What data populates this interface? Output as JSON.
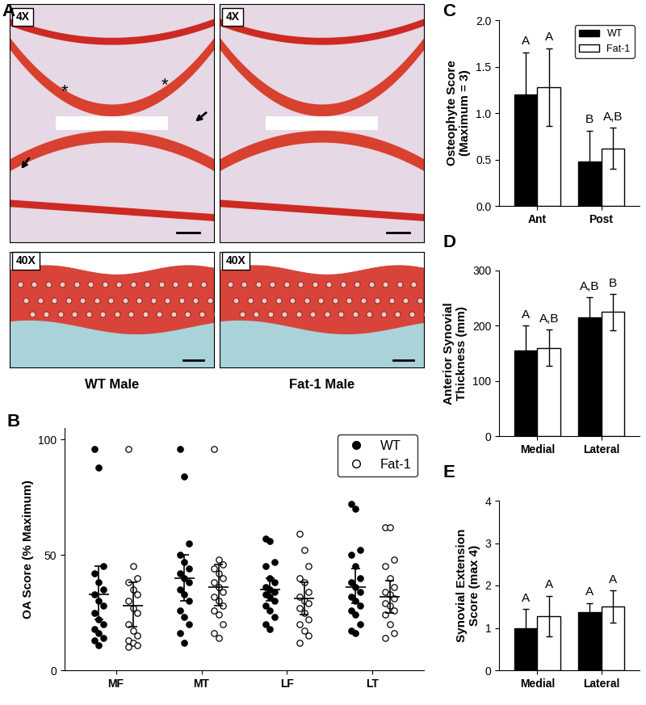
{
  "image_panel": {
    "panel_label": "A",
    "magnification_labels": [
      "4X",
      "4X",
      "40X",
      "40X"
    ],
    "captions": [
      "WT Male",
      "Fat-1 Male"
    ],
    "annotations": [
      "*",
      "*"
    ]
  },
  "chart_data": [
    {
      "type": "scatter",
      "panel_label": "B",
      "y_label": "OA Score (% Maximum)",
      "categories": [
        "MF",
        "MT",
        "LF",
        "LT"
      ],
      "ylim": [
        0,
        105
      ],
      "yticks": [
        0,
        50,
        100
      ],
      "legend": "upper right",
      "series": [
        {
          "name": "WT",
          "color": "#000000",
          "marker": "circle",
          "values": [
            [
              96,
              88,
              45,
              42,
              38,
              35,
              33,
              30,
              28,
              25,
              22,
              20,
              18,
              16,
              14,
              13,
              11
            ],
            [
              96,
              84,
              55,
              50,
              47,
              44,
              42,
              40,
              38,
              35,
              33,
              30,
              26,
              23,
              20,
              16,
              12
            ],
            [
              57,
              56,
              47,
              45,
              40,
              38,
              36,
              35,
              34,
              33,
              32,
              30,
              28,
              26,
              23,
              20,
              18
            ],
            [
              72,
              70,
              52,
              50,
              45,
              40,
              38,
              36,
              34,
              32,
              30,
              28,
              26,
              24,
              20,
              17,
              16
            ]
          ],
          "mean": [
            33,
            40,
            35,
            36
          ],
          "ci_low": [
            22,
            30,
            30,
            29
          ],
          "ci_high": [
            45,
            50,
            40,
            44
          ]
        },
        {
          "name": "Fat-1",
          "color": "#000000",
          "marker": "open_circle",
          "values": [
            [
              96,
              45,
              40,
              38,
              35,
              33,
              30,
              27,
              25,
              20,
              17,
              15,
              13,
              12,
              11,
              10
            ],
            [
              96,
              48,
              46,
              44,
              42,
              40,
              38,
              36,
              34,
              32,
              30,
              28,
              26,
              24,
              20,
              16,
              14
            ],
            [
              59,
              52,
              45,
              40,
              38,
              34,
              32,
              30,
              29,
              27,
              25,
              22,
              20,
              17,
              15,
              12
            ],
            [
              62,
              62,
              48,
              45,
              40,
              36,
              34,
              33,
              31,
              29,
              28,
              26,
              24,
              20,
              16,
              14
            ]
          ],
          "mean": [
            28,
            36,
            31,
            32
          ],
          "ci_low": [
            19,
            28,
            24,
            25
          ],
          "ci_high": [
            38,
            46,
            38,
            39
          ]
        }
      ]
    },
    {
      "type": "bar",
      "panel_label": "C",
      "y_label": "Osteophyte Score\n(Maximum = 3)",
      "categories": [
        "Ant",
        "Post"
      ],
      "ylim": [
        0,
        2.0
      ],
      "yticks": [
        {
          "value": 0,
          "label": "0.0"
        },
        {
          "value": 0.5,
          "label": "0.5"
        },
        {
          "value": 1,
          "label": "1.0"
        },
        {
          "value": 1.5,
          "label": "1.5"
        },
        {
          "value": 2,
          "label": "2.0"
        }
      ],
      "legend": "upper right",
      "series": [
        {
          "name": "WT",
          "color": "#000000",
          "values": [
            1.2,
            0.48
          ],
          "errors": [
            0.45,
            0.33
          ],
          "significance_labels": [
            "A",
            "B"
          ]
        },
        {
          "name": "Fat-1",
          "color": "#ffffff",
          "values": [
            1.28,
            0.62
          ],
          "errors": [
            0.42,
            0.22
          ],
          "significance_labels": [
            "A",
            "A,B"
          ]
        }
      ]
    },
    {
      "type": "bar",
      "panel_label": "D",
      "y_label": "Anterior Synovial\nThickness (mm)",
      "categories": [
        "Medial",
        "Lateral"
      ],
      "ylim": [
        0,
        300
      ],
      "yticks": [
        0,
        100,
        200,
        300
      ],
      "series": [
        {
          "name": "WT",
          "color": "#000000",
          "values": [
            155,
            215
          ],
          "errors": [
            45,
            37
          ],
          "significance_labels": [
            "A",
            "A,B"
          ]
        },
        {
          "name": "Fat-1",
          "color": "#ffffff",
          "values": [
            160,
            225
          ],
          "errors": [
            33,
            33
          ],
          "significance_labels": [
            "A,B",
            "B"
          ]
        }
      ]
    },
    {
      "type": "bar",
      "panel_label": "E",
      "y_label": "Synovial Extension\nScore (max 4)",
      "categories": [
        "Medial",
        "Lateral"
      ],
      "ylim": [
        0,
        4
      ],
      "yticks": [
        0,
        1,
        2,
        3,
        4
      ],
      "series": [
        {
          "name": "WT",
          "color": "#000000",
          "values": [
            1.0,
            1.37
          ],
          "errors": [
            0.45,
            0.22
          ],
          "significance_labels": [
            "A",
            "A"
          ]
        },
        {
          "name": "Fat-1",
          "color": "#ffffff",
          "values": [
            1.28,
            1.5
          ],
          "errors": [
            0.48,
            0.38
          ],
          "significance_labels": [
            "A",
            "A"
          ]
        }
      ]
    }
  ]
}
